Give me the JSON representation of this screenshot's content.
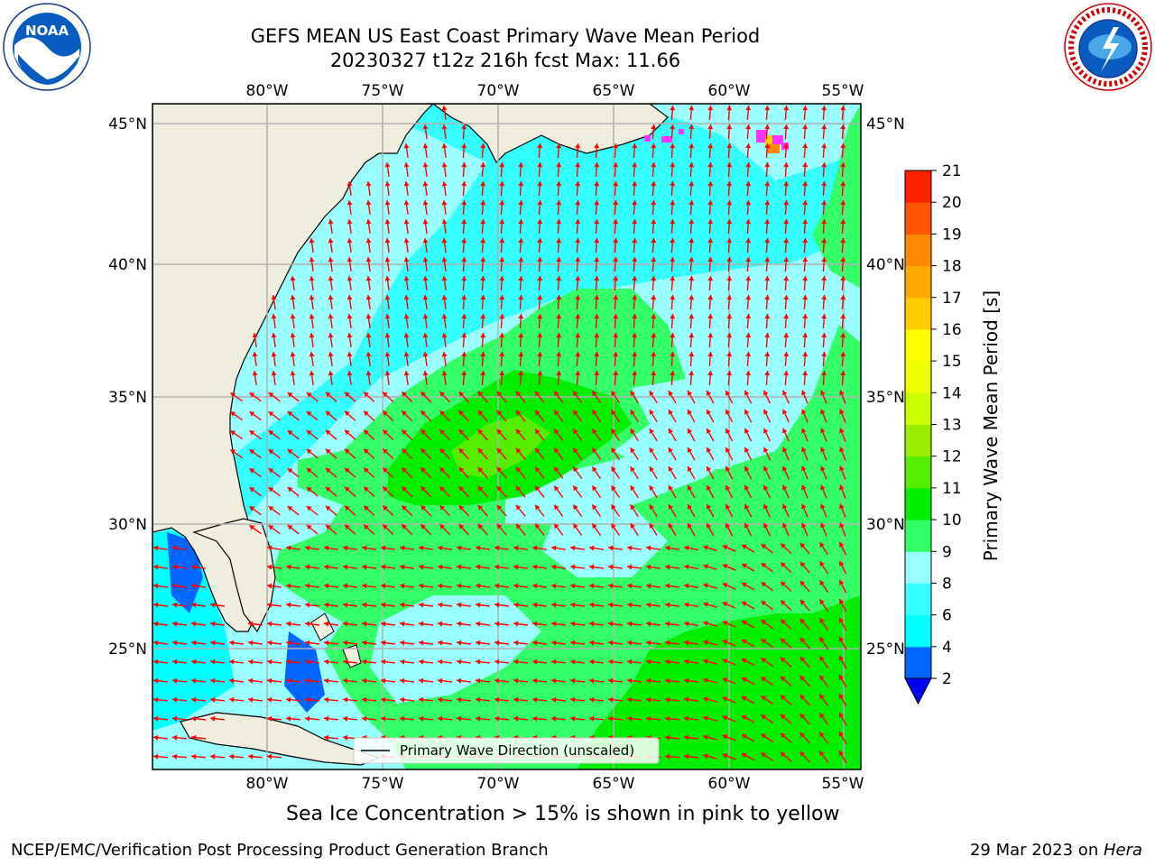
{
  "title_line1": "GEFS MEAN US East Coast Primary Wave Mean Period",
  "title_line2": "20230327 t12z 216h fcst   Max: 11.66",
  "map": {
    "lon_labels": [
      "80°W",
      "75°W",
      "70°W",
      "65°W",
      "60°W",
      "55°W"
    ],
    "lat_labels_left": [
      "45°N",
      "40°N",
      "35°N",
      "30°N",
      "25°N"
    ],
    "lat_labels_right": [
      "45°N",
      "40°N",
      "35°N",
      "30°N",
      "25°N"
    ],
    "legend_label": "Primary Wave Direction (unscaled)"
  },
  "colorbar": {
    "label": "Primary Wave Mean Period [s]",
    "ticks": [
      "2",
      "4",
      "6",
      "8",
      "9",
      "10",
      "11",
      "12",
      "13",
      "14",
      "15",
      "16",
      "17",
      "18",
      "19",
      "20",
      "21"
    ],
    "colors": [
      "#0066ff",
      "#00ffff",
      "#33ffff",
      "#99ffff",
      "#33ff66",
      "#00ee00",
      "#55ee00",
      "#99ee00",
      "#ccff00",
      "#eeff00",
      "#ffff00",
      "#ffcc00",
      "#ffaa00",
      "#ff8800",
      "#ff5500",
      "#ff2200"
    ],
    "underflow_color": "#0000ff"
  },
  "sea_ice_note": "Sea Ice Concentration > 15% is shown in pink to yellow",
  "footer_left": "NCEP/EMC/Verification Post Processing Product Generation Branch",
  "footer_right_prefix": "29 Mar 2023 on ",
  "footer_right_host": "Hera",
  "logos": {
    "left": "noaa-logo",
    "right": "nws-logo"
  },
  "colors": {
    "land": "#efedde",
    "ocean_light": "#99ffff",
    "ocean_cyan": "#33ffff",
    "ocean_green": "#33ff66",
    "ocean_darkgreen": "#00ee00",
    "arrow": "#ff0000",
    "grid": "#b0b0b0"
  }
}
